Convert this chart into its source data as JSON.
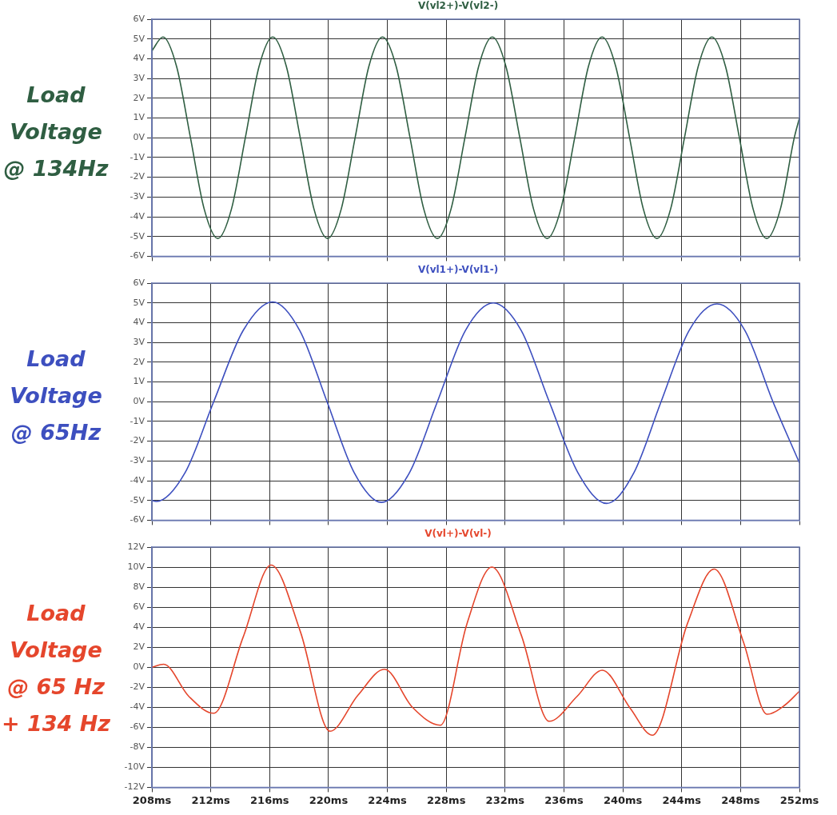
{
  "chart_data": [
    {
      "type": "line",
      "ylabel": "Load Voltage @ 134Hz",
      "xlim": [
        208,
        252
      ],
      "ylim": [
        -6,
        6
      ],
      "tick_labels": "y",
      "grid": true,
      "legend": "top",
      "marker": "none",
      "line_style": "solid",
      "xticks": [
        208,
        212,
        216,
        220,
        224,
        228,
        232,
        236,
        240,
        244,
        248,
        252
      ],
      "yticks": [
        {
          "value": -6,
          "label": "-6V"
        },
        {
          "value": -5,
          "label": "-5V"
        },
        {
          "value": -4,
          "label": "-4V"
        },
        {
          "value": -3,
          "label": "-3V"
        },
        {
          "value": -2,
          "label": "-2V"
        },
        {
          "value": -1,
          "label": "-1V"
        },
        {
          "value": 0,
          "label": "0V"
        },
        {
          "value": 1,
          "label": "1V"
        },
        {
          "value": 2,
          "label": "2V"
        },
        {
          "value": 3,
          "label": "3V"
        },
        {
          "value": 4,
          "label": "4V"
        },
        {
          "value": 5,
          "label": "5V"
        },
        {
          "value": 6,
          "label": "6V"
        }
      ],
      "series": [
        {
          "name": "V(vl2+)-V(vl2-)",
          "color": "#2f5e42",
          "x": [
            208,
            208.75,
            209.68,
            210.62,
            211.55,
            212.48,
            213.41,
            214.35,
            215.28,
            216.21,
            217.14,
            218.08,
            219.01,
            219.94,
            220.87,
            221.81,
            222.74,
            223.67,
            224.6,
            225.54,
            226.47,
            227.4,
            228.33,
            229.27,
            230.2,
            231.13,
            232.06,
            233,
            233.93,
            234.86,
            235.79,
            236.73,
            237.66,
            238.59,
            239.52,
            240.46,
            241.39,
            242.32,
            243.25,
            244.19,
            245.12,
            246.05,
            246.98,
            247.92,
            248.85,
            249.78,
            250.71,
            251.65,
            252
          ],
          "values": [
            4.4,
            5.1,
            3.6,
            0,
            -3.6,
            -5.1,
            -3.6,
            0,
            3.6,
            5.1,
            3.6,
            0,
            -3.6,
            -5.1,
            -3.6,
            0,
            3.6,
            5.1,
            3.6,
            0,
            -3.6,
            -5.1,
            -3.6,
            0,
            3.6,
            5.1,
            3.6,
            0,
            -3.6,
            -5.1,
            -3.6,
            0,
            3.6,
            5.1,
            3.6,
            0,
            -3.6,
            -5.1,
            -3.6,
            0,
            3.6,
            5.1,
            3.6,
            0,
            -3.6,
            -5.1,
            -3.6,
            0,
            1
          ]
        }
      ]
    },
    {
      "type": "line",
      "ylabel": "Load Voltage @ 65Hz",
      "xlim": [
        208,
        252
      ],
      "ylim": [
        -6,
        6
      ],
      "tick_labels": "y",
      "grid": true,
      "legend": "top",
      "marker": "none",
      "line_style": "solid",
      "xticks": [
        208,
        212,
        216,
        220,
        224,
        228,
        232,
        236,
        240,
        244,
        248,
        252
      ],
      "yticks": [
        {
          "value": -6,
          "label": "-6V"
        },
        {
          "value": -5,
          "label": "-5V"
        },
        {
          "value": -4,
          "label": "-4V"
        },
        {
          "value": -3,
          "label": "-3V"
        },
        {
          "value": -2,
          "label": "-2V"
        },
        {
          "value": -1,
          "label": "-1V"
        },
        {
          "value": 0,
          "label": "0V"
        },
        {
          "value": 1,
          "label": "1V"
        },
        {
          "value": 2,
          "label": "2V"
        },
        {
          "value": 3,
          "label": "3V"
        },
        {
          "value": 4,
          "label": "4V"
        },
        {
          "value": 5,
          "label": "5V"
        },
        {
          "value": 6,
          "label": "6V"
        }
      ],
      "series": [
        {
          "name": "V(vl1+)-V(vl1-)",
          "color": "#3d4fbf",
          "x": [
            208,
            208.3,
            210.25,
            212.2,
            214.2,
            216.2,
            218.05,
            219.9,
            221.75,
            223.6,
            225.5,
            227.4,
            229.3,
            231.2,
            233.1,
            235,
            236.95,
            238.9,
            240.75,
            242.6,
            244.5,
            246.4,
            248.3,
            250.2,
            252
          ],
          "values": [
            -5,
            -5.05,
            -3.6,
            0,
            3.6,
            5.05,
            3.6,
            0,
            -3.6,
            -5.1,
            -3.6,
            0,
            3.6,
            5,
            3.6,
            0,
            -3.6,
            -5.15,
            -3.6,
            0,
            3.6,
            4.95,
            3.6,
            0,
            -3.1
          ]
        }
      ]
    },
    {
      "type": "line",
      "ylabel": "Load Voltage @ 65 Hz + 134 Hz",
      "xlim": [
        208,
        252
      ],
      "ylim": [
        -12,
        12
      ],
      "grid": true,
      "legend": "top",
      "marker": "none",
      "line_style": "solid",
      "xticks": [
        {
          "value": 208,
          "label": "208ms"
        },
        {
          "value": 212,
          "label": "212ms"
        },
        {
          "value": 216,
          "label": "216ms"
        },
        {
          "value": 220,
          "label": "220ms"
        },
        {
          "value": 224,
          "label": "224ms"
        },
        {
          "value": 228,
          "label": "228ms"
        },
        {
          "value": 232,
          "label": "232ms"
        },
        {
          "value": 236,
          "label": "236ms"
        },
        {
          "value": 240,
          "label": "240ms"
        },
        {
          "value": 244,
          "label": "244ms"
        },
        {
          "value": 248,
          "label": "248ms"
        },
        {
          "value": 252,
          "label": "252ms"
        }
      ],
      "yticks": [
        {
          "value": -12,
          "label": "-12V"
        },
        {
          "value": -10,
          "label": "-10V"
        },
        {
          "value": -8,
          "label": "-8V"
        },
        {
          "value": -6,
          "label": "-6V"
        },
        {
          "value": -4,
          "label": "-4V"
        },
        {
          "value": -2,
          "label": "-2V"
        },
        {
          "value": 0,
          "label": "0V"
        },
        {
          "value": 2,
          "label": "2V"
        },
        {
          "value": 4,
          "label": "4V"
        },
        {
          "value": 6,
          "label": "6V"
        },
        {
          "value": 8,
          "label": "8V"
        },
        {
          "value": 10,
          "label": "10V"
        },
        {
          "value": 12,
          "label": "12V"
        }
      ],
      "series": [
        {
          "name": "V(vl+)-V(vl-)",
          "color": "#e5462c",
          "x": [
            208,
            208.8,
            210.5,
            212.2,
            214.2,
            216.1,
            218.1,
            220.1,
            222,
            223.8,
            225.7,
            227.6,
            229.4,
            231.1,
            233.1,
            235,
            236.9,
            238.6,
            240.5,
            242,
            244.4,
            246.2,
            248.2,
            249.8,
            251,
            252
          ],
          "values": [
            0,
            0.3,
            -2.9,
            -4.6,
            3,
            10.2,
            3.5,
            -6.4,
            -2.8,
            -0.2,
            -4,
            -5.8,
            4.3,
            10,
            3.2,
            -5.4,
            -2.9,
            -0.3,
            -4.1,
            -6.8,
            4.4,
            9.8,
            2.5,
            -4.7,
            -3.8,
            -2.4
          ]
        }
      ]
    }
  ]
}
